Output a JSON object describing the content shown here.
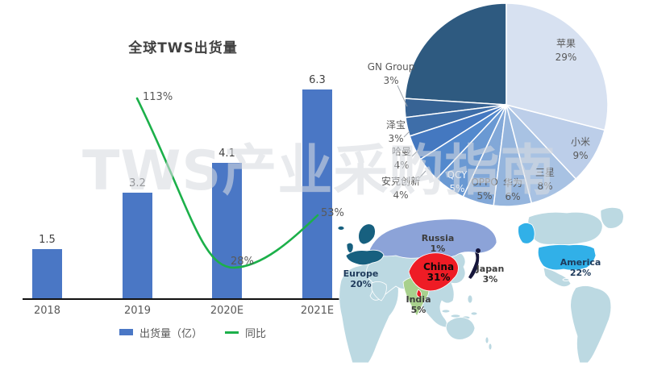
{
  "watermark": "TWS产业采购指南",
  "chart_data": [
    {
      "type": "bar",
      "title": "全球TWS出货量",
      "categories": [
        "2018",
        "2019",
        "2020E",
        "2021E"
      ],
      "series": [
        {
          "name": "出货量（亿）",
          "type": "bar",
          "values": [
            1.5,
            3.2,
            4.1,
            6.3
          ],
          "color": "#4a77c5"
        },
        {
          "name": "同比",
          "type": "line",
          "values": [
            null,
            113,
            28,
            53
          ],
          "labels": [
            "",
            "113%",
            "28%",
            "53%"
          ],
          "unit": "%",
          "color": "#1cb04a"
        }
      ],
      "ylabel": "",
      "xlabel": "",
      "grid": false,
      "legend_position": "bottom"
    },
    {
      "type": "pie",
      "title": "",
      "slices": [
        {
          "key": "apple",
          "name": "苹果",
          "pct": 29,
          "label": "29%",
          "color": "#d7e1f1"
        },
        {
          "key": "xiaomi",
          "name": "小米",
          "pct": 9,
          "label": "9%",
          "color": "#bccee9"
        },
        {
          "key": "samsung",
          "name": "三星",
          "pct": 8,
          "label": "8%",
          "color": "#a8c2e3"
        },
        {
          "key": "huawei",
          "name": "华为",
          "pct": 6,
          "label": "6%",
          "color": "#95b5dd"
        },
        {
          "key": "oppo",
          "name": "OPPO",
          "pct": 5,
          "label": "5%",
          "color": "#82a8d8"
        },
        {
          "key": "qcy",
          "name": "QCY",
          "pct": 5,
          "label": "5%",
          "color": "#6a99d3"
        },
        {
          "key": "anker",
          "name": "安克创新",
          "pct": 4,
          "label": "4%",
          "color": "#5389cd"
        },
        {
          "key": "harman",
          "name": "哈曼",
          "pct": 4,
          "label": "4%",
          "color": "#4478c0"
        },
        {
          "key": "zebao",
          "name": "泽宝",
          "pct": 3,
          "label": "3%",
          "color": "#3e6ea9"
        },
        {
          "key": "gn-group",
          "name": "GN Group",
          "pct": 3,
          "label": "3%",
          "color": "#376394"
        },
        {
          "key": "others",
          "name": "",
          "pct": 24,
          "label": "",
          "color": "#2e5a80"
        }
      ]
    },
    {
      "type": "map",
      "title": "",
      "base_color": "#bcd9e2",
      "regions": [
        {
          "name": "Europe",
          "pct": 20,
          "label": "20%",
          "color": "#17607f"
        },
        {
          "name": "Russia",
          "pct": 1,
          "label": "1%",
          "color": "#8ca3d8"
        },
        {
          "name": "China",
          "pct": 31,
          "label": "31%",
          "color": "#ee1c25"
        },
        {
          "name": "Japan",
          "pct": 3,
          "label": "3%",
          "color": "#15153a"
        },
        {
          "name": "India",
          "pct": 5,
          "label": "5%",
          "color": "#a8d08d"
        },
        {
          "name": "America",
          "pct": 22,
          "label": "22%",
          "color": "#31b0e8"
        }
      ]
    }
  ]
}
